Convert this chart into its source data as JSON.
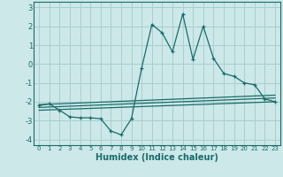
{
  "title": "",
  "xlabel": "Humidex (Indice chaleur)",
  "bg_color": "#cce8e8",
  "grid_color": "#aacece",
  "line_color": "#1a6b6b",
  "xlim": [
    -0.5,
    23.5
  ],
  "ylim": [
    -4.3,
    3.3
  ],
  "xticks": [
    0,
    1,
    2,
    3,
    4,
    5,
    6,
    7,
    8,
    9,
    10,
    11,
    12,
    13,
    14,
    15,
    16,
    17,
    18,
    19,
    20,
    21,
    22,
    23
  ],
  "yticks": [
    -4,
    -3,
    -2,
    -1,
    0,
    1,
    2,
    3
  ],
  "main_x": [
    0,
    1,
    2,
    3,
    4,
    5,
    6,
    7,
    8,
    9,
    10,
    11,
    12,
    13,
    14,
    15,
    16,
    17,
    18,
    19,
    20,
    21,
    22,
    23
  ],
  "main_y": [
    -2.2,
    -2.1,
    -2.45,
    -2.8,
    -2.85,
    -2.85,
    -2.9,
    -3.55,
    -3.75,
    -2.9,
    -0.2,
    2.1,
    1.65,
    0.65,
    2.65,
    0.25,
    2.0,
    0.3,
    -0.5,
    -0.65,
    -1.0,
    -1.1,
    -1.85,
    -2.0
  ],
  "trend1_x": [
    0,
    23
  ],
  "trend1_y": [
    -2.15,
    -1.65
  ],
  "trend2_x": [
    0,
    23
  ],
  "trend2_y": [
    -2.3,
    -1.8
  ],
  "trend3_x": [
    0,
    23
  ],
  "trend3_y": [
    -2.45,
    -2.0
  ]
}
